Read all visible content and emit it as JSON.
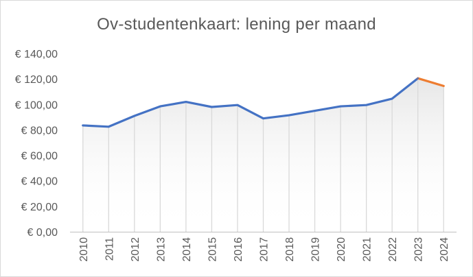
{
  "chart_data": {
    "type": "line",
    "title": "Ov-studentenkaart: lening per maand",
    "xlabel": "",
    "ylabel": "",
    "categories": [
      "2010",
      "2011",
      "2012",
      "2013",
      "2014",
      "2015",
      "2016",
      "2017",
      "2018",
      "2019",
      "2020",
      "2021",
      "2022",
      "2023",
      "2024"
    ],
    "y_tick_labels": [
      "€ 0,00",
      "€ 20,00",
      "€ 40,00",
      "€ 60,00",
      "€ 80,00",
      "€ 100,00",
      "€ 120,00",
      "€ 140,00"
    ],
    "ylim": [
      0,
      140
    ],
    "grid": "vertical drop lines",
    "series": [
      {
        "values": [
          83.5,
          82.5,
          91,
          98.5,
          102,
          98,
          99.5,
          89,
          91.5,
          95,
          98.5,
          99.5,
          104.5,
          120.5,
          114.5
        ],
        "color_main": "#4472c4",
        "color_last_segment": "#ed7d31"
      }
    ]
  }
}
